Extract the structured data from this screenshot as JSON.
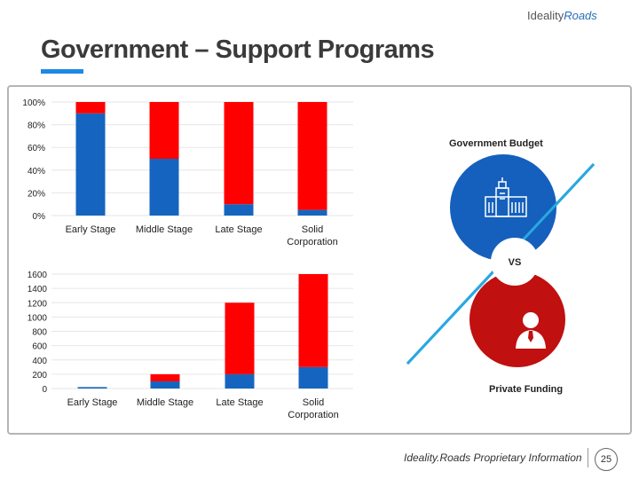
{
  "slide": {
    "title": "Government – Support Programs",
    "logo_left": "Ideality",
    "logo_right": "Roads",
    "footer": "Ideality.Roads Proprietary Information",
    "page_number": "25"
  },
  "colors": {
    "blue": "#1565c0",
    "red": "#ff0000",
    "accent": "#1e88e5",
    "circle_blue": "#1560bd",
    "circle_red": "#c01010"
  },
  "graphic": {
    "government_label": "Government Budget",
    "vs_label": "VS",
    "private_label": "Private Funding",
    "government_icon": "government-building-icon",
    "private_icon": "businessman-icon"
  },
  "chart_data": [
    {
      "type": "bar",
      "stacked": true,
      "percent": true,
      "categories": [
        "Early Stage",
        "Middle Stage",
        "Late Stage",
        "Solid Corporation"
      ],
      "series": [
        {
          "name": "Private Funding",
          "color": "#1565c0",
          "values": [
            90,
            50,
            10,
            5
          ]
        },
        {
          "name": "Government Budget",
          "color": "#ff0000",
          "values": [
            10,
            50,
            90,
            95
          ]
        }
      ],
      "ylim": [
        0,
        100
      ],
      "yticks": [
        0,
        20,
        40,
        60,
        80,
        100
      ],
      "ytick_labels": [
        "0%",
        "20%",
        "40%",
        "60%",
        "80%",
        "100%"
      ],
      "grid": true
    },
    {
      "type": "bar",
      "stacked": true,
      "categories": [
        "Early Stage",
        "Middle Stage",
        "Late Stage",
        "Solid Corporation"
      ],
      "series": [
        {
          "name": "Private Funding",
          "color": "#1565c0",
          "values": [
            20,
            100,
            200,
            300
          ]
        },
        {
          "name": "Government Budget",
          "color": "#ff0000",
          "values": [
            0,
            100,
            1000,
            1300
          ]
        }
      ],
      "ylim": [
        0,
        1600
      ],
      "yticks": [
        0,
        200,
        400,
        600,
        800,
        1000,
        1200,
        1400,
        1600
      ],
      "ytick_labels": [
        "0",
        "200",
        "400",
        "600",
        "800",
        "1000",
        "1200",
        "1400",
        "1600"
      ],
      "grid": true
    }
  ]
}
